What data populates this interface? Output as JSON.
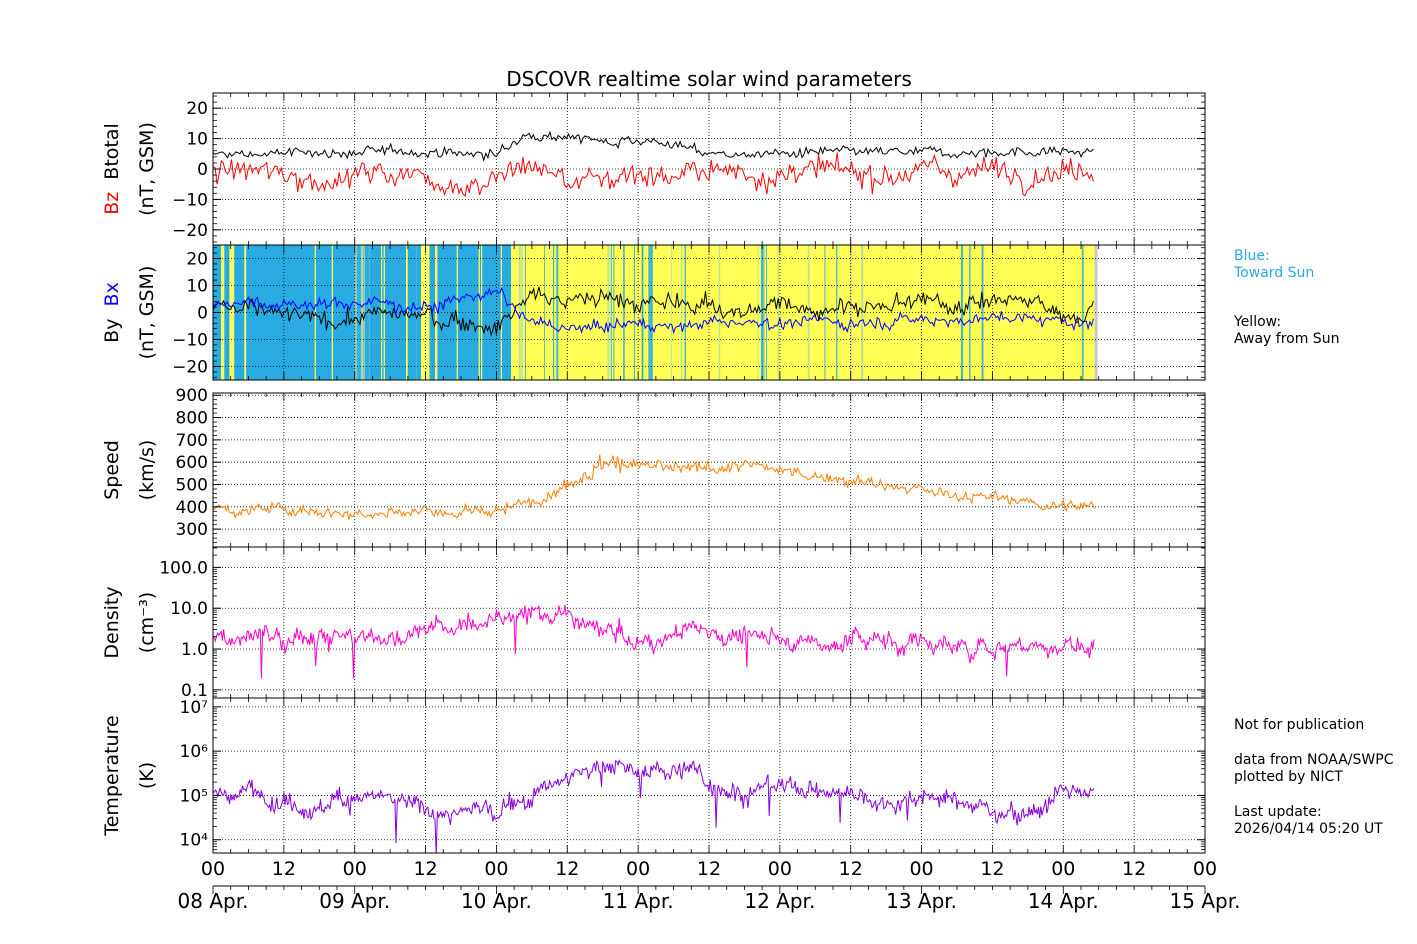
{
  "title": "DSCOVR realtime solar wind parameters",
  "colors": {
    "btotal": "#000000",
    "bz": "#ff0000",
    "by": "#000000",
    "bx": "#0000ff",
    "toward": "#29abe2",
    "away": "#ffff55",
    "gap": "#c8c8c8",
    "speed": "#ff8000",
    "density": "#ff00cc",
    "temperature": "#8800dd"
  },
  "legend": {
    "blue_title": "Blue:",
    "blue_desc": "Toward Sun",
    "yellow_title": "Yellow:",
    "yellow_desc": "Away from Sun"
  },
  "notes": {
    "not_for_publication": "Not for publication",
    "data_from": "data from NOAA/SWPC",
    "plotted_by": "plotted by NICT",
    "last_update_label": "Last update:",
    "last_update_value": "2026/04/14 05:20 UT"
  },
  "chart_data": {
    "type": "line",
    "x_axis": {
      "range_hours": [
        0,
        168
      ],
      "ticks_hours": [
        0,
        12,
        24,
        36,
        48,
        60,
        72,
        84,
        96,
        108,
        120,
        132,
        144,
        156,
        168
      ],
      "tick_labels": [
        "00",
        "12",
        "00",
        "12",
        "00",
        "12",
        "00",
        "12",
        "00",
        "12",
        "00",
        "12",
        "00",
        "12",
        "00"
      ],
      "day_labels": [
        "08 Apr.",
        "09 Apr.",
        "10 Apr.",
        "11 Apr.",
        "12 Apr.",
        "13 Apr.",
        "14 Apr.",
        "15 Apr."
      ],
      "data_end_hour": 149.3
    },
    "panels": [
      {
        "id": "bfield",
        "ylabel_lines": [
          "Bz  Btotal",
          "(nT, GSM)"
        ],
        "ylabel_first_parts": [
          {
            "text": "Bz",
            "color": "#ff0000"
          },
          {
            "text": "  Btotal",
            "color": "#000000"
          }
        ],
        "ylim": [
          -25,
          25
        ],
        "yticks": [
          -20,
          -10,
          0,
          10,
          20
        ],
        "ytick_labels": [
          "−20",
          "−10",
          "0",
          "10",
          "20"
        ],
        "scale": "linear",
        "series": [
          {
            "name": "Btotal",
            "color": "#000000",
            "x": [
              0,
              6,
              12,
              18,
              24,
              30,
              36,
              42,
              48,
              54,
              60,
              66,
              72,
              78,
              84,
              90,
              96,
              102,
              108,
              114,
              120,
              126,
              132,
              138,
              144,
              149
            ],
            "y": [
              4.5,
              4.8,
              5.2,
              5.5,
              5.3,
              5.5,
              6,
              5,
              4.8,
              12,
              11,
              9,
              10,
              8,
              5,
              4.8,
              5,
              5.2,
              5.3,
              5.2,
              5.3,
              5.4,
              5.6,
              5.8,
              5.6,
              5.5
            ]
          },
          {
            "name": "Bz",
            "color": "#ff0000",
            "x": [
              0,
              6,
              12,
              18,
              24,
              30,
              36,
              42,
              48,
              54,
              60,
              66,
              72,
              78,
              84,
              90,
              96,
              102,
              108,
              114,
              120,
              126,
              132,
              138,
              144,
              149
            ],
            "y": [
              0,
              -1,
              -2,
              -3,
              -2,
              -1,
              -2,
              -5,
              -3,
              2,
              -4,
              -3,
              -1,
              -2,
              -1,
              -1,
              -2,
              -1,
              -2,
              -1,
              0,
              -1,
              0,
              -1,
              0,
              1
            ]
          }
        ]
      },
      {
        "id": "bxby",
        "ylabel_lines": [
          "By  Bx",
          "(nT, GSM)"
        ],
        "ylabel_first_parts": [
          {
            "text": "By",
            "color": "#000000"
          },
          {
            "text": "  Bx",
            "color": "#0000ff"
          }
        ],
        "ylim": [
          -25,
          25
        ],
        "yticks": [
          -20,
          -10,
          0,
          10,
          20
        ],
        "ytick_labels": [
          "−20",
          "−10",
          "0",
          "10",
          "20"
        ],
        "scale": "linear",
        "sector_background": [
          {
            "start": 0,
            "end": 5,
            "polarity": "mixed"
          },
          {
            "start": 5,
            "end": 24,
            "polarity": "toward"
          },
          {
            "start": 24,
            "end": 26.5,
            "polarity": "away"
          },
          {
            "start": 26.5,
            "end": 34.5,
            "polarity": "toward"
          },
          {
            "start": 34.5,
            "end": 38,
            "polarity": "mixed"
          },
          {
            "start": 38,
            "end": 50.5,
            "polarity": "toward"
          },
          {
            "start": 50.5,
            "end": 149.3,
            "polarity": "away"
          }
        ],
        "series": [
          {
            "name": "By",
            "color": "#000000",
            "x": [
              0,
              6,
              12,
              18,
              24,
              30,
              36,
              42,
              48,
              54,
              60,
              66,
              72,
              78,
              84,
              90,
              96,
              102,
              108,
              114,
              120,
              126,
              132,
              138,
              144,
              149
            ],
            "y": [
              2,
              1,
              -1,
              -3,
              -2,
              0,
              -2,
              -4,
              -5,
              8,
              4,
              6,
              3,
              4,
              2,
              0,
              3,
              1,
              3,
              2,
              4,
              3,
              5,
              4,
              -1,
              1
            ]
          },
          {
            "name": "Bx",
            "color": "#0000ff",
            "x": [
              0,
              6,
              12,
              18,
              24,
              30,
              36,
              42,
              48,
              54,
              60,
              66,
              72,
              78,
              84,
              90,
              96,
              102,
              108,
              114,
              120,
              126,
              132,
              138,
              144,
              149
            ],
            "y": [
              4,
              4,
              3,
              3,
              4,
              3,
              2,
              6,
              7,
              -4,
              -6,
              -5,
              -4,
              -5,
              -4,
              -3,
              -4,
              -3,
              -4,
              -3,
              -2,
              -3,
              -2,
              -2,
              -3,
              -4
            ]
          }
        ]
      },
      {
        "id": "speed",
        "ylabel_lines": [
          "Speed",
          "(km/s)"
        ],
        "ylim": [
          220,
          910
        ],
        "yticks": [
          300,
          400,
          500,
          600,
          700,
          800,
          900
        ],
        "ytick_labels": [
          "300",
          "400",
          "500",
          "600",
          "700",
          "800",
          "900"
        ],
        "scale": "linear",
        "series": [
          {
            "name": "Speed",
            "color": "#ff8000",
            "x": [
              0,
              6,
              12,
              18,
              24,
              30,
              36,
              42,
              48,
              54,
              60,
              66,
              72,
              78,
              84,
              90,
              96,
              102,
              108,
              114,
              120,
              126,
              132,
              138,
              144,
              149
            ],
            "y": [
              400,
              385,
              395,
              380,
              375,
              380,
              385,
              365,
              380,
              420,
              500,
              600,
              580,
              560,
              570,
              590,
              560,
              540,
              520,
              490,
              470,
              450,
              440,
              420,
              400,
              400
            ]
          }
        ]
      },
      {
        "id": "density",
        "ylabel_lines": [
          "Density",
          "(cm⁻³)"
        ],
        "ylim_log10": [
          -1.2,
          2.5
        ],
        "yticks": [
          0.1,
          1.0,
          10.0,
          100.0
        ],
        "ytick_labels": [
          "0.1",
          "1.0",
          "10.0",
          "100.0"
        ],
        "scale": "log",
        "series": [
          {
            "name": "Density",
            "color": "#ff00cc",
            "x": [
              0,
              6,
              12,
              18,
              24,
              30,
              36,
              42,
              48,
              54,
              60,
              66,
              72,
              78,
              84,
              90,
              96,
              102,
              108,
              114,
              120,
              126,
              132,
              138,
              144,
              149
            ],
            "y": [
              2.5,
              2,
              1.5,
              2.5,
              2,
              1.8,
              3,
              4,
              5,
              8,
              6,
              2.5,
              1,
              2,
              3,
              2,
              2,
              1.2,
              1.8,
              1.5,
              1.5,
              1,
              1.2,
              1.5,
              1,
              1.5
            ]
          }
        ]
      },
      {
        "id": "temperature",
        "ylabel_lines": [
          "Temperature",
          "(K)"
        ],
        "ylim_log10": [
          3.7,
          7.2
        ],
        "yticks": [
          10000,
          100000,
          1000000,
          10000000
        ],
        "ytick_labels": [
          "10⁴",
          "10⁵",
          "10⁶",
          "10⁷"
        ],
        "scale": "log",
        "series": [
          {
            "name": "Temperature",
            "color": "#8800dd",
            "x": [
              0,
              6,
              12,
              18,
              24,
              30,
              36,
              42,
              48,
              54,
              60,
              66,
              72,
              78,
              84,
              90,
              96,
              102,
              108,
              114,
              120,
              126,
              132,
              138,
              144,
              149
            ],
            "y": [
              100000,
              120000,
              80000,
              60000,
              90000,
              70000,
              50000,
              40000,
              60000,
              80000,
              300000,
              500000,
              300000,
              400000,
              200000,
              150000,
              150000,
              120000,
              110000,
              90000,
              100000,
              80000,
              50000,
              40000,
              100000,
              120000
            ]
          }
        ]
      }
    ]
  }
}
